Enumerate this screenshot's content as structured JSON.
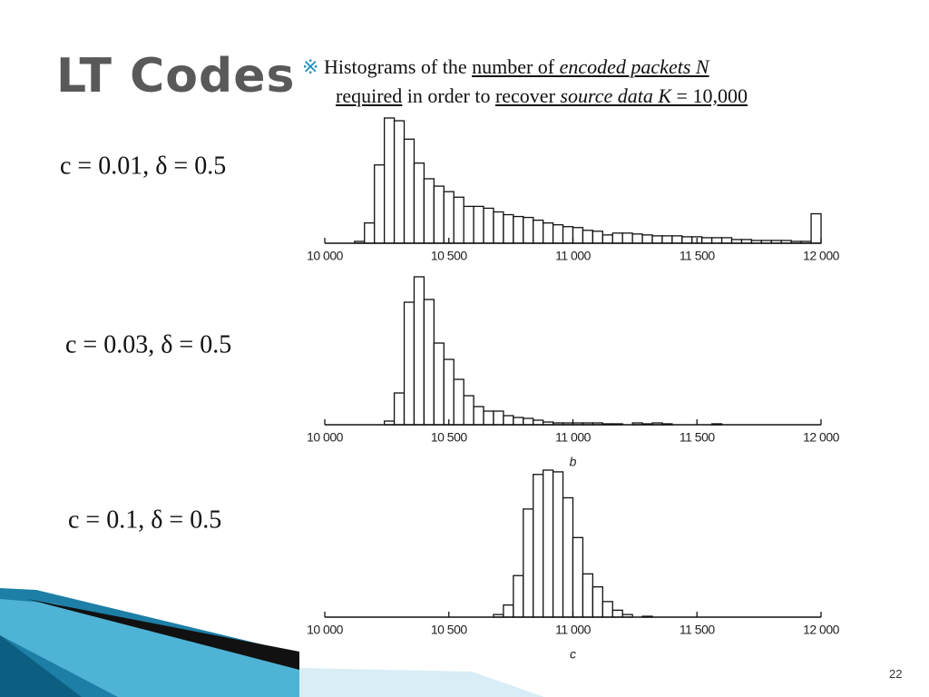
{
  "title": "LT Codes",
  "bullet": {
    "marker": "※",
    "parts": [
      "Histograms of the ",
      "number of ",
      "encoded packets N",
      "required",
      " in order to ",
      "recover ",
      "source data K",
      " = 10,000"
    ]
  },
  "page_number": "22",
  "chart_data": [
    {
      "type": "histogram",
      "title": "c = 0.01, δ = 0.5",
      "bins": [
        10000,
        10040,
        10080,
        10120,
        10160,
        10200,
        10240,
        10280,
        10320,
        10360,
        10400,
        10440,
        10480,
        10520,
        10560,
        10600,
        10640,
        10680,
        10720,
        10760,
        10800,
        10840,
        10880,
        10920,
        10960,
        11000,
        11040,
        11080,
        11120,
        11160,
        11200,
        11240,
        11280,
        11320,
        11360,
        11400,
        11440,
        11480,
        11520,
        11560,
        11600,
        11640,
        11680,
        11720,
        11760,
        11800,
        11840,
        11880,
        11920,
        11960,
        12000
      ],
      "values": [
        0,
        0,
        0,
        2,
        22,
        85,
        136,
        133,
        113,
        87,
        70,
        62,
        56,
        50,
        40,
        40,
        38,
        34,
        31,
        29,
        28,
        25,
        22,
        20,
        18,
        17,
        14,
        13,
        9,
        11,
        11,
        10,
        9,
        8,
        8,
        8,
        7,
        7,
        6,
        6,
        6,
        4,
        4,
        3,
        3,
        3,
        3,
        2,
        2,
        32
      ],
      "xlim": [
        10000,
        12000
      ],
      "xticks": [
        {
          "value": 10000,
          "label": "10 000"
        },
        {
          "value": 10500,
          "label": "10 500"
        },
        {
          "value": 11000,
          "label": "11 000"
        },
        {
          "value": 11500,
          "label": "11 500"
        },
        {
          "value": 12000,
          "label": "12 000"
        }
      ]
    },
    {
      "type": "histogram",
      "title": "c = 0.03, δ = 0.5",
      "xlabel": "b",
      "bins": [
        10000,
        10040,
        10080,
        10120,
        10160,
        10200,
        10240,
        10280,
        10320,
        10360,
        10400,
        10440,
        10480,
        10520,
        10560,
        10600,
        10640,
        10680,
        10720,
        10760,
        10800,
        10840,
        10880,
        10920,
        10960,
        11000,
        11040,
        11080,
        11120,
        11160,
        11200,
        11240,
        11280,
        11320,
        11360,
        11400,
        11440,
        11480,
        11520,
        11560,
        11600,
        11640,
        11680,
        11720,
        11760,
        11800,
        11840,
        11880,
        11920,
        11960,
        12000
      ],
      "values": [
        0,
        0,
        0,
        0,
        0,
        0,
        4,
        35,
        135,
        163,
        138,
        90,
        72,
        50,
        32,
        20,
        15,
        15,
        10,
        8,
        7,
        5,
        3,
        2,
        2,
        2,
        2,
        2,
        1,
        1,
        0,
        2,
        1,
        2,
        1,
        0,
        0,
        0,
        0,
        1,
        0,
        0,
        0,
        0,
        0,
        0,
        0,
        0,
        0,
        0
      ],
      "xlim": [
        10000,
        12000
      ],
      "xticks": [
        {
          "value": 10000,
          "label": "10 000"
        },
        {
          "value": 10500,
          "label": "10 500"
        },
        {
          "value": 11000,
          "label": "11 000"
        },
        {
          "value": 11500,
          "label": "11 500"
        },
        {
          "value": 12000,
          "label": "12 000"
        }
      ]
    },
    {
      "type": "histogram",
      "title": "c = 0.1, δ = 0.5",
      "xlabel": "c",
      "bins": [
        10000,
        10040,
        10080,
        10120,
        10160,
        10200,
        10240,
        10280,
        10320,
        10360,
        10400,
        10440,
        10480,
        10520,
        10560,
        10600,
        10640,
        10680,
        10720,
        10760,
        10800,
        10840,
        10880,
        10920,
        10960,
        11000,
        11040,
        11080,
        11120,
        11160,
        11200,
        11240,
        11280,
        11320,
        11360,
        11400,
        11440,
        11480,
        11520,
        11560,
        11600,
        11640,
        11680,
        11720,
        11760,
        11800,
        11840,
        11880,
        11920,
        11960,
        12000
      ],
      "values": [
        0,
        0,
        0,
        0,
        0,
        0,
        0,
        0,
        0,
        0,
        0,
        0,
        0,
        0,
        0,
        0,
        0,
        3,
        14,
        48,
        125,
        165,
        170,
        168,
        138,
        92,
        50,
        35,
        18,
        8,
        3,
        0,
        1,
        0,
        0,
        0,
        0,
        0,
        0,
        0,
        0,
        0,
        0,
        0,
        0,
        0,
        0,
        0,
        0,
        0
      ],
      "xlim": [
        10000,
        12000
      ],
      "xticks": [
        {
          "value": 10000,
          "label": "10 000"
        },
        {
          "value": 10500,
          "label": "10 500"
        },
        {
          "value": 11000,
          "label": "11 000"
        },
        {
          "value": 11500,
          "label": "11 500"
        },
        {
          "value": 12000,
          "label": "12 000"
        }
      ]
    }
  ]
}
